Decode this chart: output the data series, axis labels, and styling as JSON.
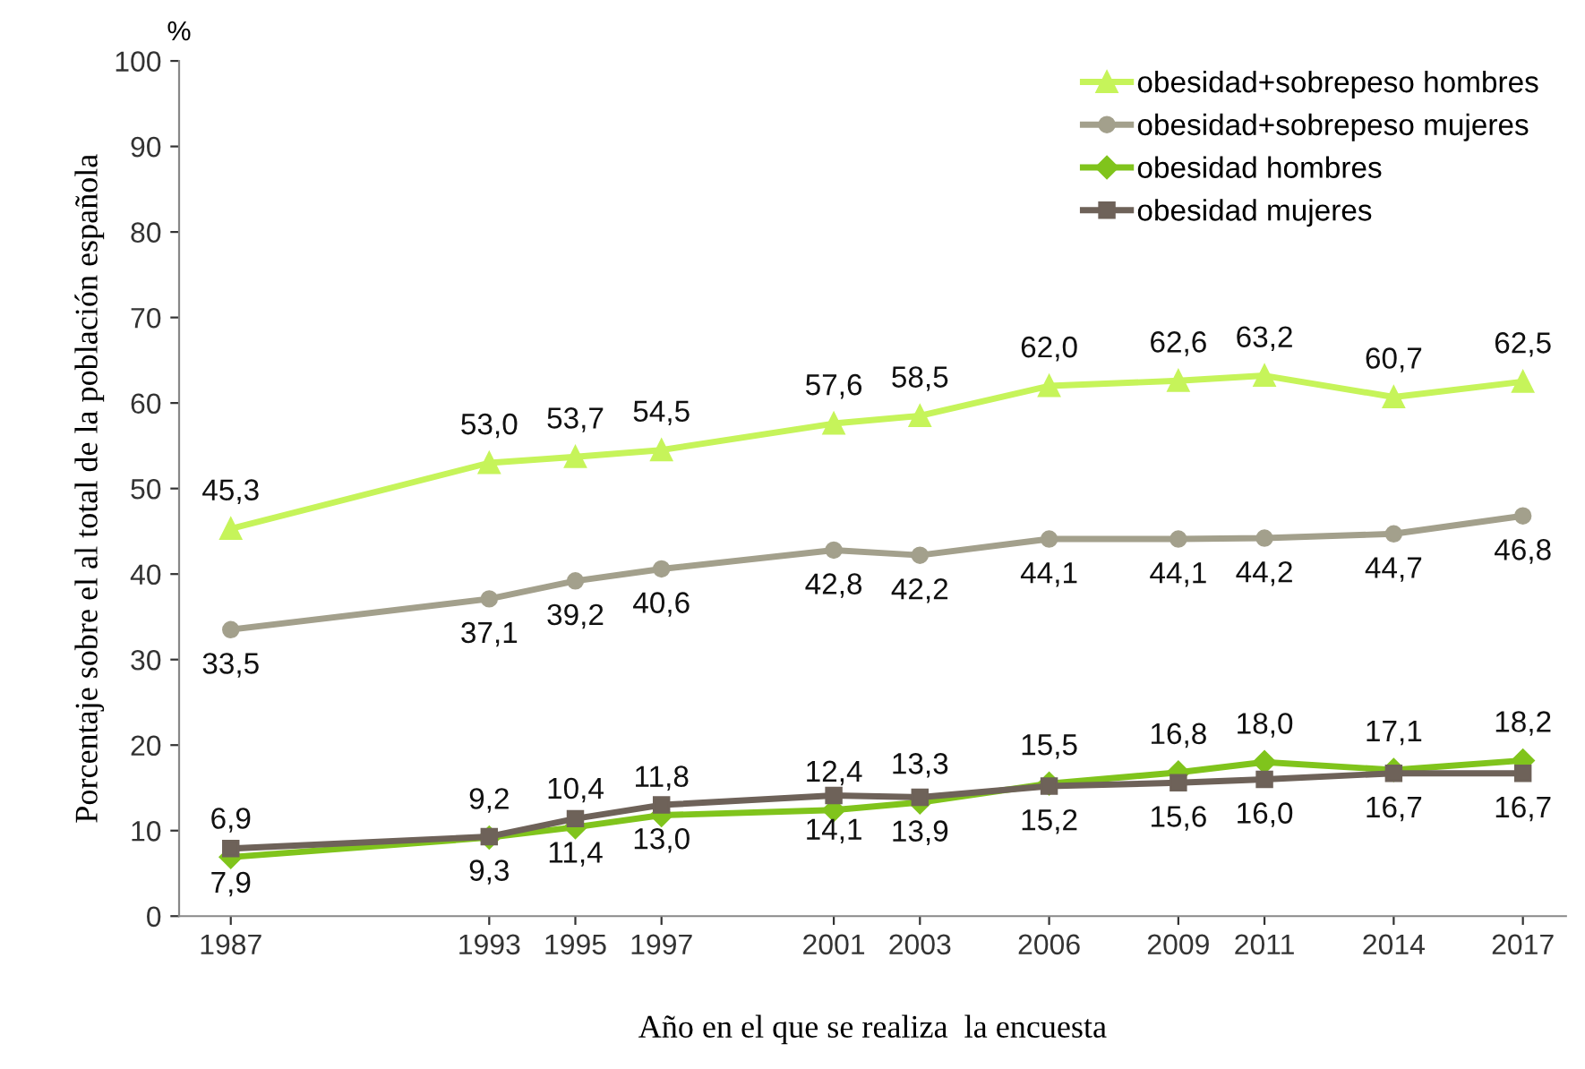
{
  "chart_data": {
    "type": "line",
    "xlabel": "Año en el que se realiza  la encuesta",
    "ylabel": "Porcentaje sobre el al total de la población española",
    "annotations": [
      "%"
    ],
    "x": [
      1987,
      1993,
      1995,
      1997,
      2001,
      2003,
      2006,
      2009,
      2011,
      2014,
      2017
    ],
    "xlim": [
      1985.8,
      2018
    ],
    "xticks": [
      1987,
      1993,
      1995,
      1997,
      2001,
      2003,
      2006,
      2009,
      2011,
      2014,
      2017
    ],
    "ylim": [
      0,
      100
    ],
    "yticks": [
      0,
      10,
      20,
      30,
      40,
      50,
      60,
      70,
      80,
      90,
      100
    ],
    "grid": false,
    "legend": "top right",
    "series": [
      {
        "name": "obesidad+sobrepeso hombres",
        "color": "#c6f45a",
        "marker": "triangle",
        "values": [
          45.3,
          53.0,
          53.7,
          54.5,
          57.6,
          58.5,
          62.0,
          62.6,
          63.2,
          60.7,
          62.5
        ],
        "value_labels": [
          "45,3",
          "53,0",
          "53,7",
          "54,5",
          "57,6",
          "58,5",
          "62,0",
          "62,6",
          "63,2",
          "60,7",
          "62,5"
        ]
      },
      {
        "name": "obesidad+sobrepeso mujeres",
        "color": "#a3a08c",
        "marker": "circle",
        "values": [
          33.5,
          37.1,
          39.2,
          40.6,
          42.8,
          42.2,
          44.1,
          44.1,
          44.2,
          44.7,
          46.8
        ],
        "value_labels": [
          "33,5",
          "37,1",
          "39,2",
          "40,6",
          "42,8",
          "42,2",
          "44,1",
          "44,1",
          "44,2",
          "44,7",
          "46,8"
        ]
      },
      {
        "name": "obesidad hombres",
        "color": "#80c41c",
        "marker": "diamond",
        "values": [
          6.9,
          9.2,
          10.4,
          11.8,
          12.4,
          13.3,
          15.5,
          16.8,
          18.0,
          17.1,
          18.2
        ],
        "value_labels": [
          "6,9",
          "9,2",
          "10,4",
          "11,8",
          "12,4",
          "13,3",
          "15,5",
          "16,8",
          "18,0",
          "17,1",
          "18,2"
        ]
      },
      {
        "name": "obesidad mujeres",
        "color": "#6e6259",
        "marker": "square",
        "values": [
          7.9,
          9.3,
          11.4,
          13.0,
          14.1,
          13.9,
          15.2,
          15.6,
          16.0,
          16.7,
          16.7
        ],
        "value_labels": [
          "7,9",
          "9,3",
          "11,4",
          "13,0",
          "14,1",
          "13,9",
          "15,2",
          "15,6",
          "16,0",
          "16,7",
          "16,7"
        ]
      }
    ]
  }
}
